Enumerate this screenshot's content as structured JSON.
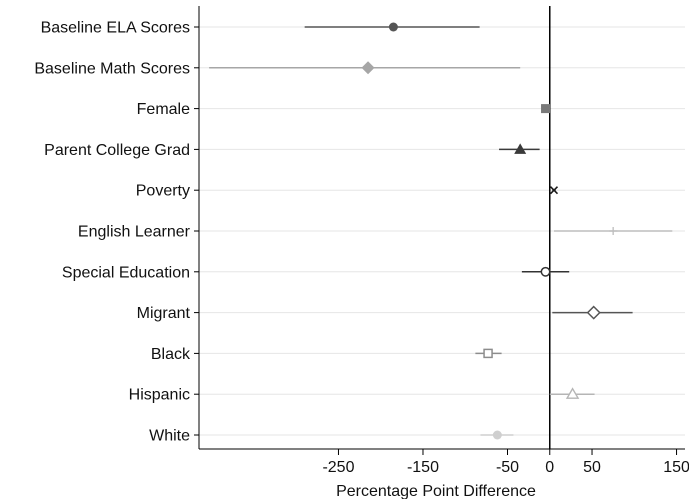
{
  "chart_data": {
    "type": "coefficient-plot",
    "xlabel": "Percentage Point Difference",
    "x_ticks": [
      -250,
      -150,
      -50,
      0,
      50,
      150
    ],
    "xlim": [
      -415,
      160
    ],
    "reference_line": 0,
    "grid": "horizontal",
    "rows": [
      {
        "label": "Baseline ELA Scores",
        "estimate": -185,
        "ci_low": -290,
        "ci_high": -83,
        "marker": "circle-filled",
        "color": "#555555"
      },
      {
        "label": "Baseline Math Scores",
        "estimate": -215,
        "ci_low": -403,
        "ci_high": -35,
        "marker": "diamond-filled",
        "color": "#a6a6a6"
      },
      {
        "label": "Female",
        "estimate": -5,
        "ci_low": -8,
        "ci_high": -2,
        "marker": "square-filled",
        "color": "#7a7a7a"
      },
      {
        "label": "Parent College Grad",
        "estimate": -35,
        "ci_low": -60,
        "ci_high": -12,
        "marker": "triangle-filled",
        "color": "#3a3a3a"
      },
      {
        "label": "Poverty",
        "estimate": 5,
        "ci_low": 3,
        "ci_high": 7,
        "marker": "x",
        "color": "#1a1a1a"
      },
      {
        "label": "English Learner",
        "estimate": 75,
        "ci_low": 5,
        "ci_high": 145,
        "marker": "plus",
        "color": "#bdbdbd"
      },
      {
        "label": "Special Education",
        "estimate": -5,
        "ci_low": -33,
        "ci_high": 23,
        "marker": "circle-hollow",
        "color": "#333333"
      },
      {
        "label": "Migrant",
        "estimate": 52,
        "ci_low": 3,
        "ci_high": 98,
        "marker": "diamond-hollow",
        "color": "#555555"
      },
      {
        "label": "Black",
        "estimate": -73,
        "ci_low": -88,
        "ci_high": -57,
        "marker": "square-hollow",
        "color": "#8c8c8c"
      },
      {
        "label": "Hispanic",
        "estimate": 27,
        "ci_low": 0,
        "ci_high": 53,
        "marker": "triangle-hollow",
        "color": "#b5b5b5"
      },
      {
        "label": "White",
        "estimate": -62,
        "ci_low": -82,
        "ci_high": -43,
        "marker": "circle-filled",
        "color": "#cfcfcf"
      }
    ]
  }
}
